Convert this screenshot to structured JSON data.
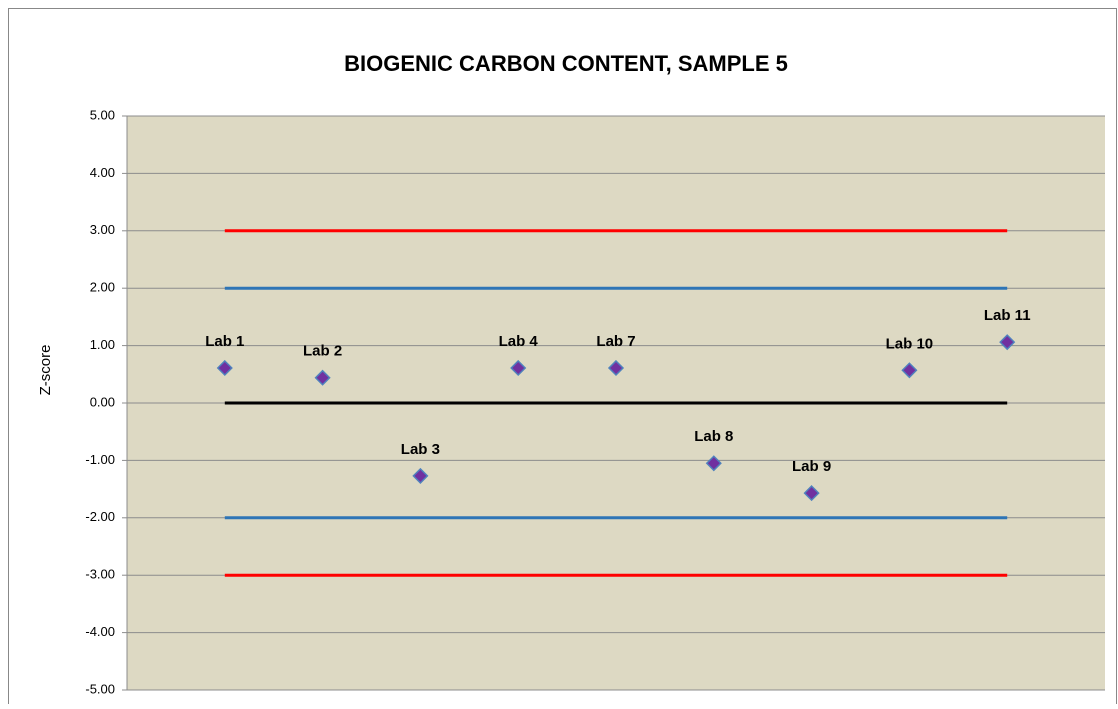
{
  "chart_data": {
    "type": "scatter",
    "title": "BIOGENIC CARBON CONTENT, SAMPLE 5",
    "ylabel": "Z-score",
    "xlim": [
      0,
      10
    ],
    "ylim": [
      -5,
      5
    ],
    "yticks": [
      {
        "value": -5,
        "label": "-5.00"
      },
      {
        "value": -4,
        "label": "-4.00"
      },
      {
        "value": -3,
        "label": "-3.00"
      },
      {
        "value": -2,
        "label": "-2.00"
      },
      {
        "value": -1,
        "label": "-1.00"
      },
      {
        "value": 0,
        "label": "0.00"
      },
      {
        "value": 1,
        "label": "1.00"
      },
      {
        "value": 2,
        "label": "2.00"
      },
      {
        "value": 3,
        "label": "3.00"
      },
      {
        "value": 4,
        "label": "4.00"
      },
      {
        "value": 5,
        "label": "5.00"
      }
    ],
    "grid": true,
    "x": [
      1,
      2,
      3,
      4,
      5,
      6,
      7,
      8,
      9
    ],
    "values": [
      0.61,
      0.44,
      -1.27,
      0.61,
      0.61,
      -1.05,
      -1.57,
      0.57,
      1.06
    ],
    "point_labels": [
      "Lab 1",
      "Lab 2",
      "Lab 3",
      "Lab 4",
      "Lab 7",
      "Lab 8",
      "Lab 9",
      "Lab 10",
      "Lab 11"
    ],
    "color": "#7030a0",
    "reference_lines": [
      {
        "color": "#ff0000",
        "x": [
          1,
          9
        ],
        "values": [
          3,
          3
        ]
      },
      {
        "color": "#2e75b6",
        "x": [
          1,
          9
        ],
        "values": [
          2,
          2
        ]
      },
      {
        "color": "#000000",
        "x": [
          1,
          9
        ],
        "values": [
          0,
          0
        ]
      },
      {
        "color": "#2e75b6",
        "x": [
          1,
          9
        ],
        "values": [
          -2,
          -2
        ]
      },
      {
        "color": "#ff0000",
        "x": [
          1,
          9
        ],
        "values": [
          -3,
          -3
        ]
      }
    ]
  }
}
